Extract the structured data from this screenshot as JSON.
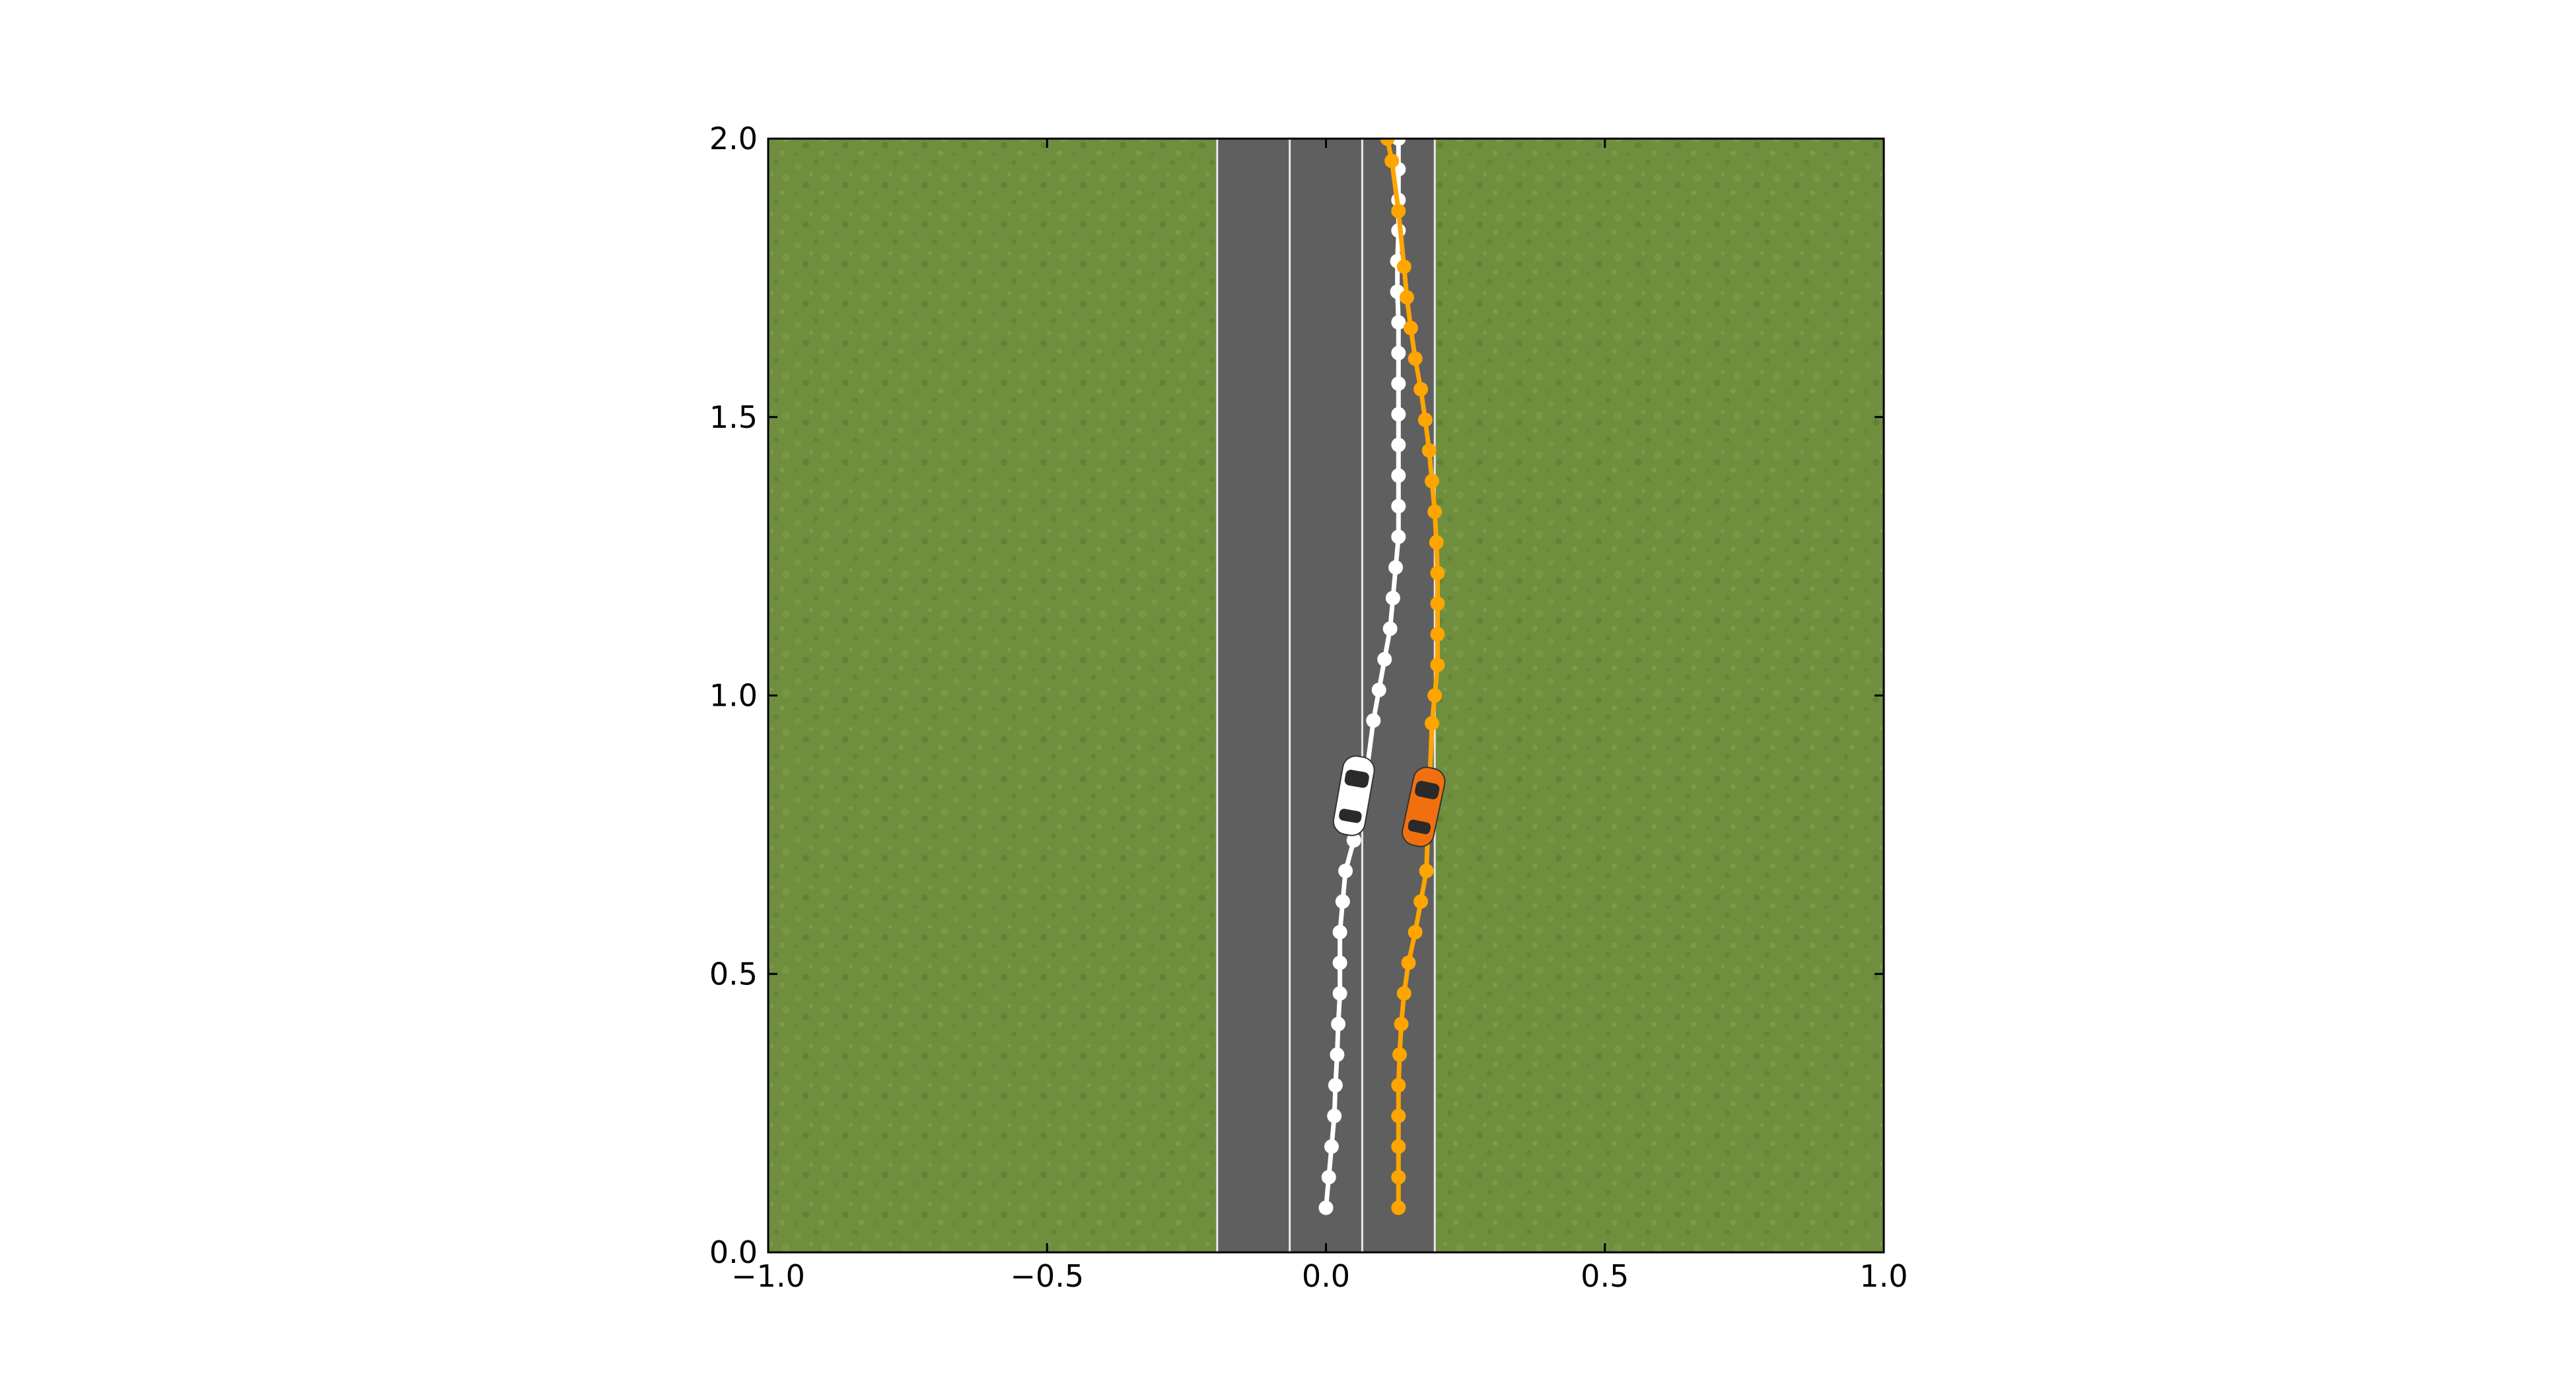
{
  "chart_data": {
    "type": "scatter",
    "title": "",
    "xlabel": "",
    "ylabel": "",
    "xlim": [
      -1.0,
      1.0
    ],
    "ylim": [
      0.0,
      2.0
    ],
    "x_ticks": [
      -1.0,
      -0.5,
      0.0,
      0.5,
      1.0
    ],
    "x_tick_labels": [
      "−1.0",
      "−0.5",
      "0.0",
      "0.5",
      "1.0"
    ],
    "y_ticks": [
      0.0,
      0.5,
      1.0,
      1.5,
      2.0
    ],
    "y_tick_labels": [
      "0.0",
      "0.5",
      "1.0",
      "1.5",
      "2.0"
    ],
    "grid": false,
    "legend": "none",
    "background": {
      "grass_color": "#6f8f3f",
      "road_color": "#5f5f5f",
      "lane_line_color": "#e8e8e8",
      "road_x_range": [
        -0.195,
        0.195
      ],
      "lane_lines_x": [
        -0.195,
        -0.065,
        0.065,
        0.195
      ]
    },
    "series": [
      {
        "color": "#ffffff",
        "car_color": "#ffffff",
        "car_position": {
          "x": 0.05,
          "y": 0.82,
          "heading_deg": 10
        },
        "x": [
          0.0,
          0.005,
          0.01,
          0.015,
          0.017,
          0.02,
          0.022,
          0.025,
          0.025,
          0.025,
          0.03,
          0.035,
          0.05,
          0.07,
          0.085,
          0.095,
          0.105,
          0.115,
          0.12,
          0.125,
          0.13,
          0.13,
          0.13,
          0.13,
          0.13,
          0.13,
          0.13,
          0.13,
          0.128,
          0.128,
          0.13,
          0.13,
          0.13,
          0.13
        ],
        "y": [
          0.08,
          0.135,
          0.19,
          0.245,
          0.3,
          0.355,
          0.41,
          0.465,
          0.52,
          0.575,
          0.63,
          0.685,
          0.74,
          0.84,
          0.955,
          1.01,
          1.065,
          1.12,
          1.175,
          1.23,
          1.285,
          1.34,
          1.395,
          1.45,
          1.505,
          1.56,
          1.615,
          1.67,
          1.725,
          1.78,
          1.835,
          1.89,
          1.945,
          2.0
        ]
      },
      {
        "color": "#ffa500",
        "car_color": "#f07010",
        "car_position": {
          "x": 0.175,
          "y": 0.8,
          "heading_deg": 12
        },
        "x": [
          0.13,
          0.13,
          0.13,
          0.13,
          0.13,
          0.132,
          0.135,
          0.14,
          0.148,
          0.16,
          0.17,
          0.18,
          0.19,
          0.195,
          0.2,
          0.2,
          0.2,
          0.2,
          0.198,
          0.195,
          0.19,
          0.185,
          0.178,
          0.17,
          0.16,
          0.152,
          0.145,
          0.14,
          0.13,
          0.118,
          0.11
        ],
        "y": [
          0.08,
          0.135,
          0.19,
          0.245,
          0.3,
          0.355,
          0.41,
          0.465,
          0.52,
          0.575,
          0.63,
          0.685,
          0.95,
          1.0,
          1.055,
          1.11,
          1.165,
          1.22,
          1.275,
          1.33,
          1.385,
          1.44,
          1.495,
          1.55,
          1.605,
          1.66,
          1.715,
          1.77,
          1.87,
          1.96,
          2.0
        ]
      }
    ]
  }
}
